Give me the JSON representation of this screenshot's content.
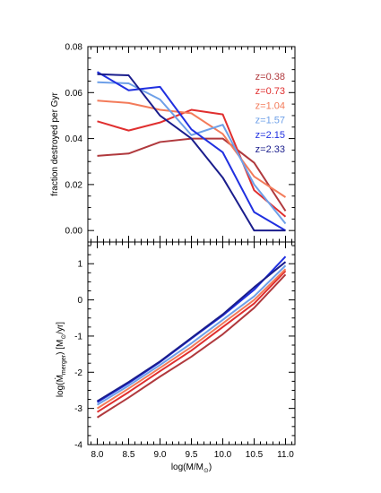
{
  "chart_data": [
    {
      "type": "line",
      "panel": "top",
      "ylabel": "fraction destroyed per Gyr",
      "ylim": [
        -0.005,
        0.08
      ],
      "yticks": [
        0.0,
        0.02,
        0.04,
        0.06,
        0.08
      ],
      "ytick_labels": [
        "0.00",
        "0.02",
        "0.04",
        "0.06",
        "0.08"
      ],
      "xlim": [
        7.85,
        11.15
      ],
      "xticks": [
        8.0,
        8.5,
        9.0,
        9.5,
        10.0,
        10.5,
        11.0
      ],
      "legend_position": "top-right",
      "series": [
        {
          "name": "z=0.38",
          "color": "#b0393d",
          "x": [
            8.0,
            8.5,
            9.0,
            9.5,
            10.0,
            10.5,
            11.0
          ],
          "values": [
            0.0325,
            0.0335,
            0.0385,
            0.04,
            0.04,
            0.0295,
            0.0085
          ]
        },
        {
          "name": "z=0.73",
          "color": "#e02f2f",
          "x": [
            8.0,
            8.5,
            9.0,
            9.5,
            10.0,
            10.5,
            11.0
          ],
          "values": [
            0.0475,
            0.0435,
            0.047,
            0.0525,
            0.0505,
            0.0175,
            0.006
          ]
        },
        {
          "name": "z=1.04",
          "color": "#f37b5a",
          "x": [
            8.0,
            8.5,
            9.0,
            9.5,
            10.0,
            10.5,
            11.0
          ],
          "values": [
            0.0565,
            0.0555,
            0.0525,
            0.051,
            0.042,
            0.0235,
            0.0145
          ]
        },
        {
          "name": "z=1.57",
          "color": "#6ea0e8",
          "x": [
            8.0,
            8.5,
            9.0,
            9.5,
            10.0,
            10.5,
            11.0
          ],
          "values": [
            0.0645,
            0.064,
            0.057,
            0.0415,
            0.046,
            0.02,
            0.003
          ]
        },
        {
          "name": "z=2.15",
          "color": "#2030e0",
          "x": [
            8.0,
            8.5,
            9.0,
            9.5,
            10.0,
            10.5,
            11.0
          ],
          "values": [
            0.069,
            0.061,
            0.0625,
            0.044,
            0.034,
            0.008,
            0.0
          ]
        },
        {
          "name": "z=2.33",
          "color": "#1a1d8c",
          "x": [
            8.0,
            8.5,
            9.0,
            9.5,
            10.0,
            10.5,
            11.0
          ],
          "values": [
            0.068,
            0.0675,
            0.05,
            0.04,
            0.023,
            0.0,
            0.0
          ]
        }
      ]
    },
    {
      "type": "line",
      "panel": "bottom",
      "ylabel_main": "log(",
      "ylabel_mdot": "M",
      "ylabel_sub": "merger",
      "ylabel_after": ") [M",
      "ylabel_sun": "⊙",
      "ylabel_unit": "/yr]",
      "xlabel_main": "log(M/M",
      "xlabel_sun": "⊙",
      "xlabel_close": ")",
      "ylim": [
        -4.0,
        1.6
      ],
      "yticks": [
        -4,
        -3,
        -2,
        -1,
        0,
        1
      ],
      "ytick_labels": [
        "-4",
        "-3",
        "-2",
        "-1",
        "0",
        "1"
      ],
      "xlim": [
        7.85,
        11.15
      ],
      "xticks": [
        8.0,
        8.5,
        9.0,
        9.5,
        10.0,
        10.5,
        11.0
      ],
      "xtick_labels": [
        "8.0",
        "8.5",
        "9.0",
        "9.5",
        "10.0",
        "10.5",
        "11.0"
      ],
      "series": [
        {
          "color": "#b0393d",
          "x": [
            8.0,
            8.5,
            9.0,
            9.5,
            10.0,
            10.5,
            11.0
          ],
          "values": [
            -3.25,
            -2.7,
            -2.12,
            -1.57,
            -0.95,
            -0.22,
            0.7
          ]
        },
        {
          "color": "#e02f2f",
          "x": [
            8.0,
            8.5,
            9.0,
            9.5,
            10.0,
            10.5,
            11.0
          ],
          "values": [
            -3.1,
            -2.55,
            -1.97,
            -1.4,
            -0.75,
            -0.1,
            0.8
          ]
        },
        {
          "color": "#f37b5a",
          "x": [
            8.0,
            8.5,
            9.0,
            9.5,
            10.0,
            10.5,
            11.0
          ],
          "values": [
            -3.0,
            -2.45,
            -1.88,
            -1.3,
            -0.65,
            0.0,
            0.85
          ]
        },
        {
          "color": "#6ea0e8",
          "x": [
            8.0,
            8.5,
            9.0,
            9.5,
            10.0,
            10.5,
            11.0
          ],
          "values": [
            -2.9,
            -2.37,
            -1.8,
            -1.2,
            -0.55,
            0.1,
            0.95
          ]
        },
        {
          "color": "#2030e0",
          "x": [
            8.0,
            8.5,
            9.0,
            9.5,
            10.0,
            10.5,
            11.0
          ],
          "values": [
            -2.83,
            -2.3,
            -1.72,
            -1.07,
            -0.43,
            0.28,
            1.2
          ]
        },
        {
          "color": "#1a1d8c",
          "x": [
            8.0,
            8.5,
            9.0,
            9.5,
            10.0,
            10.5,
            11.0
          ],
          "values": [
            -2.8,
            -2.27,
            -1.7,
            -1.05,
            -0.4,
            0.35,
            1.05
          ]
        }
      ]
    }
  ]
}
